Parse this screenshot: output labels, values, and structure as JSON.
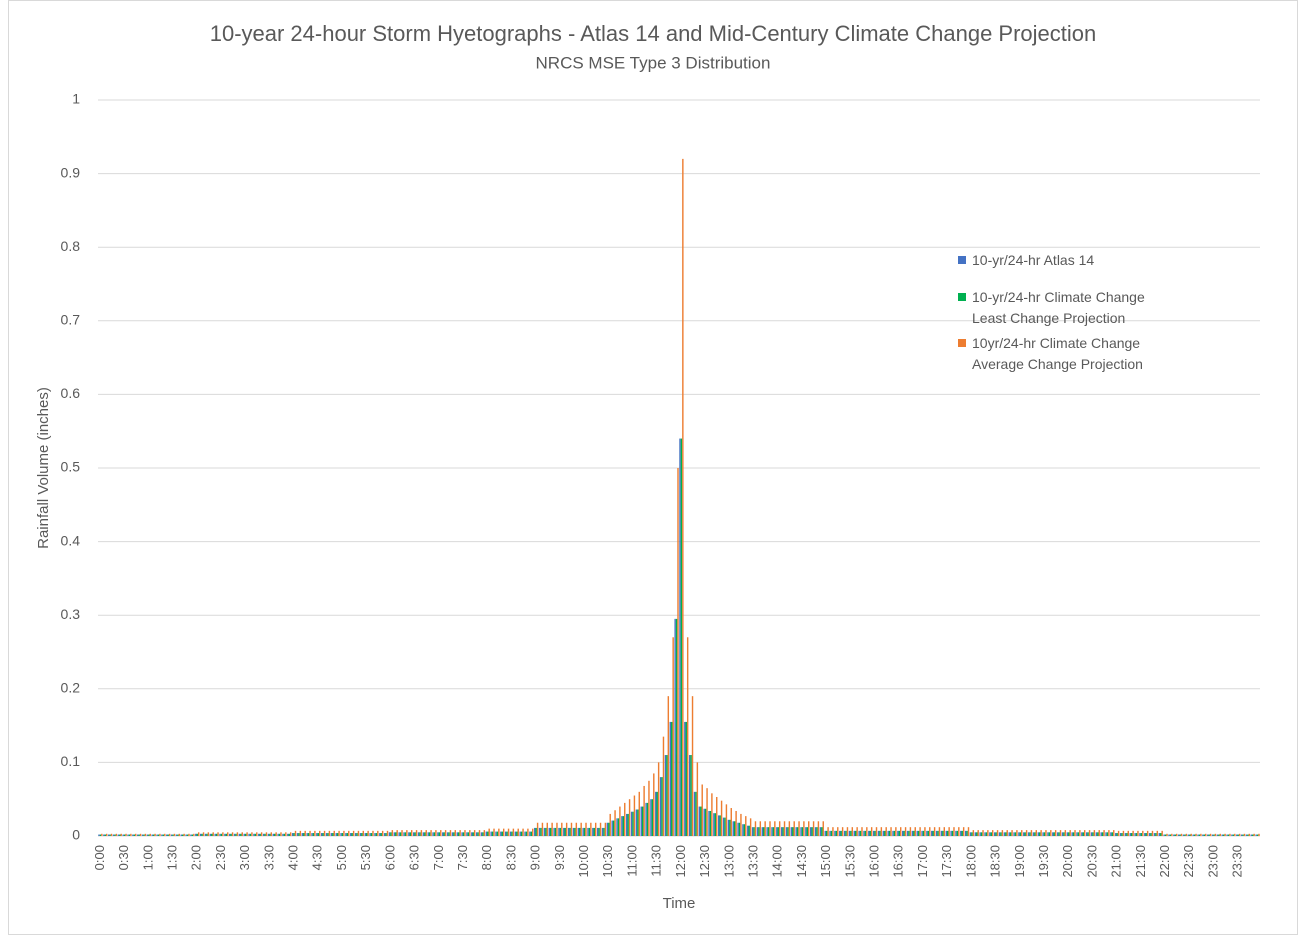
{
  "chart_data": {
    "type": "bar",
    "title": "10-year 24-hour Storm Hyetographs - Atlas 14 and Mid-Century Climate Change Projection",
    "subtitle": "NRCS MSE Type 3 Distribution",
    "x_label": "Time",
    "y_label": "Rainfall Volume (inches)",
    "ylim": [
      0,
      1
    ],
    "yticks": [
      0,
      0.1,
      0.2,
      0.3,
      0.4,
      0.5,
      0.6,
      0.7,
      0.8,
      0.9,
      1
    ],
    "grid": true,
    "legend": "right",
    "categories": [
      "0:00",
      null,
      null,
      null,
      null,
      "0:30",
      null,
      null,
      null,
      null,
      "1:00",
      null,
      null,
      null,
      null,
      "1:30",
      null,
      null,
      null,
      null,
      "2:00",
      null,
      null,
      null,
      null,
      "2:30",
      null,
      null,
      null,
      null,
      "3:00",
      null,
      null,
      null,
      null,
      "3:30",
      null,
      null,
      null,
      null,
      "4:00",
      null,
      null,
      null,
      null,
      "4:30",
      null,
      null,
      null,
      null,
      "5:00",
      null,
      null,
      null,
      null,
      "5:30",
      null,
      null,
      null,
      null,
      "6:00",
      null,
      null,
      null,
      null,
      "6:30",
      null,
      null,
      null,
      null,
      "7:00",
      null,
      null,
      null,
      null,
      "7:30",
      null,
      null,
      null,
      null,
      "8:00",
      null,
      null,
      null,
      null,
      "8:30",
      null,
      null,
      null,
      null,
      "9:00",
      null,
      null,
      null,
      null,
      "9:30",
      null,
      null,
      null,
      null,
      "10:00",
      null,
      null,
      null,
      null,
      "10:30",
      null,
      null,
      null,
      null,
      "11:00",
      null,
      null,
      null,
      null,
      "11:30",
      null,
      null,
      null,
      null,
      "12:00",
      null,
      null,
      null,
      null,
      "12:30",
      null,
      null,
      null,
      null,
      "13:00",
      null,
      null,
      null,
      null,
      "13:30",
      null,
      null,
      null,
      null,
      "14:00",
      null,
      null,
      null,
      null,
      "14:30",
      null,
      null,
      null,
      null,
      "15:00",
      null,
      null,
      null,
      null,
      "15:30",
      null,
      null,
      null,
      null,
      "16:00",
      null,
      null,
      null,
      null,
      "16:30",
      null,
      null,
      null,
      null,
      "17:00",
      null,
      null,
      null,
      null,
      "17:30",
      null,
      null,
      null,
      null,
      "18:00",
      null,
      null,
      null,
      null,
      "18:30",
      null,
      null,
      null,
      null,
      "19:00",
      null,
      null,
      null,
      null,
      "19:30",
      null,
      null,
      null,
      null,
      "20:00",
      null,
      null,
      null,
      null,
      "20:30",
      null,
      null,
      null,
      null,
      "21:00",
      null,
      null,
      null,
      null,
      "21:30",
      null,
      null,
      null,
      null,
      "22:00",
      null,
      null,
      null,
      null,
      "22:30",
      null,
      null,
      null,
      null,
      "23:00",
      null,
      null,
      null,
      null,
      "23:30",
      null,
      null,
      null,
      null
    ],
    "series": [
      {
        "name": "10-yr/24-hr Atlas 14",
        "color": "#4472c4",
        "values": [
          0.002,
          0.002,
          0.002,
          0.002,
          0.002,
          0.002,
          0.002,
          0.002,
          0.002,
          0.002,
          0.002,
          0.002,
          0.002,
          0.002,
          0.002,
          0.002,
          0.002,
          0.002,
          0.002,
          0.002,
          0.003,
          0.003,
          0.003,
          0.003,
          0.003,
          0.003,
          0.003,
          0.003,
          0.003,
          0.003,
          0.003,
          0.003,
          0.003,
          0.003,
          0.003,
          0.003,
          0.003,
          0.003,
          0.003,
          0.003,
          0.004,
          0.004,
          0.004,
          0.004,
          0.004,
          0.004,
          0.004,
          0.004,
          0.004,
          0.004,
          0.004,
          0.004,
          0.004,
          0.004,
          0.004,
          0.004,
          0.004,
          0.004,
          0.004,
          0.004,
          0.005,
          0.005,
          0.005,
          0.005,
          0.005,
          0.005,
          0.005,
          0.005,
          0.005,
          0.005,
          0.005,
          0.005,
          0.005,
          0.005,
          0.005,
          0.005,
          0.005,
          0.005,
          0.005,
          0.005,
          0.006,
          0.006,
          0.006,
          0.006,
          0.006,
          0.006,
          0.006,
          0.006,
          0.006,
          0.006,
          0.011,
          0.011,
          0.011,
          0.011,
          0.011,
          0.011,
          0.011,
          0.011,
          0.011,
          0.011,
          0.011,
          0.011,
          0.011,
          0.011,
          0.011,
          0.018,
          0.021,
          0.024,
          0.027,
          0.03,
          0.033,
          0.036,
          0.04,
          0.045,
          0.05,
          0.06,
          0.08,
          0.11,
          0.155,
          0.295,
          0.54,
          0.155,
          0.11,
          0.06,
          0.04,
          0.037,
          0.034,
          0.031,
          0.028,
          0.025,
          0.022,
          0.02,
          0.018,
          0.016,
          0.014,
          0.012,
          0.012,
          0.012,
          0.012,
          0.012,
          0.012,
          0.012,
          0.012,
          0.012,
          0.012,
          0.012,
          0.012,
          0.012,
          0.012,
          0.012,
          0.007,
          0.007,
          0.007,
          0.007,
          0.007,
          0.007,
          0.007,
          0.007,
          0.007,
          0.007,
          0.007,
          0.007,
          0.007,
          0.007,
          0.007,
          0.007,
          0.007,
          0.007,
          0.007,
          0.007,
          0.007,
          0.007,
          0.007,
          0.007,
          0.007,
          0.007,
          0.007,
          0.007,
          0.007,
          0.007,
          0.005,
          0.005,
          0.005,
          0.005,
          0.005,
          0.005,
          0.005,
          0.005,
          0.005,
          0.005,
          0.005,
          0.005,
          0.005,
          0.005,
          0.005,
          0.005,
          0.005,
          0.005,
          0.005,
          0.005,
          0.005,
          0.005,
          0.005,
          0.005,
          0.005,
          0.005,
          0.005,
          0.005,
          0.005,
          0.005,
          0.004,
          0.004,
          0.004,
          0.004,
          0.004,
          0.004,
          0.004,
          0.004,
          0.004,
          0.004,
          0.002,
          0.002,
          0.002,
          0.002,
          0.002,
          0.002,
          0.002,
          0.002,
          0.002,
          0.002,
          0.002,
          0.002,
          0.002,
          0.002,
          0.002,
          0.002,
          0.002,
          0.002,
          0.002,
          0.002
        ]
      },
      {
        "name": "10-yr/24-hr Climate Change Least Change Projection",
        "color": "#00b050",
        "values": [
          0.002,
          0.002,
          0.002,
          0.002,
          0.002,
          0.002,
          0.002,
          0.002,
          0.002,
          0.002,
          0.002,
          0.002,
          0.002,
          0.002,
          0.002,
          0.002,
          0.002,
          0.002,
          0.002,
          0.002,
          0.003,
          0.003,
          0.003,
          0.003,
          0.003,
          0.003,
          0.003,
          0.003,
          0.003,
          0.003,
          0.003,
          0.003,
          0.003,
          0.003,
          0.003,
          0.003,
          0.003,
          0.003,
          0.003,
          0.003,
          0.004,
          0.004,
          0.004,
          0.004,
          0.004,
          0.004,
          0.004,
          0.004,
          0.004,
          0.004,
          0.004,
          0.004,
          0.004,
          0.004,
          0.004,
          0.004,
          0.004,
          0.004,
          0.004,
          0.004,
          0.005,
          0.005,
          0.005,
          0.005,
          0.005,
          0.005,
          0.005,
          0.005,
          0.005,
          0.005,
          0.005,
          0.005,
          0.005,
          0.005,
          0.005,
          0.005,
          0.005,
          0.005,
          0.005,
          0.005,
          0.006,
          0.006,
          0.006,
          0.006,
          0.006,
          0.006,
          0.006,
          0.006,
          0.006,
          0.006,
          0.011,
          0.011,
          0.011,
          0.011,
          0.011,
          0.011,
          0.011,
          0.011,
          0.011,
          0.011,
          0.011,
          0.011,
          0.011,
          0.011,
          0.011,
          0.018,
          0.021,
          0.024,
          0.027,
          0.03,
          0.033,
          0.036,
          0.04,
          0.045,
          0.05,
          0.06,
          0.08,
          0.11,
          0.155,
          0.295,
          0.54,
          0.155,
          0.11,
          0.06,
          0.04,
          0.037,
          0.034,
          0.031,
          0.028,
          0.025,
          0.022,
          0.02,
          0.018,
          0.016,
          0.014,
          0.012,
          0.012,
          0.012,
          0.012,
          0.012,
          0.012,
          0.012,
          0.012,
          0.012,
          0.012,
          0.012,
          0.012,
          0.012,
          0.012,
          0.012,
          0.007,
          0.007,
          0.007,
          0.007,
          0.007,
          0.007,
          0.007,
          0.007,
          0.007,
          0.007,
          0.007,
          0.007,
          0.007,
          0.007,
          0.007,
          0.007,
          0.007,
          0.007,
          0.007,
          0.007,
          0.007,
          0.007,
          0.007,
          0.007,
          0.007,
          0.007,
          0.007,
          0.007,
          0.007,
          0.007,
          0.005,
          0.005,
          0.005,
          0.005,
          0.005,
          0.005,
          0.005,
          0.005,
          0.005,
          0.005,
          0.005,
          0.005,
          0.005,
          0.005,
          0.005,
          0.005,
          0.005,
          0.005,
          0.005,
          0.005,
          0.005,
          0.005,
          0.005,
          0.005,
          0.005,
          0.005,
          0.005,
          0.005,
          0.005,
          0.005,
          0.004,
          0.004,
          0.004,
          0.004,
          0.004,
          0.004,
          0.004,
          0.004,
          0.004,
          0.004,
          0.002,
          0.002,
          0.002,
          0.002,
          0.002,
          0.002,
          0.002,
          0.002,
          0.002,
          0.002,
          0.002,
          0.002,
          0.002,
          0.002,
          0.002,
          0.002,
          0.002,
          0.002,
          0.002,
          0.002
        ]
      },
      {
        "name": "10yr/24-hr Climate Change Average Change Projection",
        "color": "#ed7d31",
        "values": [
          0.003,
          0.003,
          0.003,
          0.003,
          0.003,
          0.003,
          0.003,
          0.003,
          0.003,
          0.003,
          0.003,
          0.003,
          0.003,
          0.003,
          0.003,
          0.003,
          0.003,
          0.003,
          0.003,
          0.003,
          0.005,
          0.005,
          0.005,
          0.005,
          0.005,
          0.005,
          0.005,
          0.005,
          0.005,
          0.005,
          0.005,
          0.005,
          0.005,
          0.005,
          0.005,
          0.005,
          0.005,
          0.005,
          0.005,
          0.005,
          0.007,
          0.007,
          0.007,
          0.007,
          0.007,
          0.007,
          0.007,
          0.007,
          0.007,
          0.007,
          0.007,
          0.007,
          0.007,
          0.007,
          0.007,
          0.007,
          0.007,
          0.007,
          0.007,
          0.007,
          0.008,
          0.008,
          0.008,
          0.008,
          0.008,
          0.008,
          0.008,
          0.008,
          0.008,
          0.008,
          0.008,
          0.008,
          0.008,
          0.008,
          0.008,
          0.008,
          0.008,
          0.008,
          0.008,
          0.008,
          0.01,
          0.01,
          0.01,
          0.01,
          0.01,
          0.01,
          0.01,
          0.01,
          0.01,
          0.01,
          0.018,
          0.018,
          0.018,
          0.018,
          0.018,
          0.018,
          0.018,
          0.018,
          0.018,
          0.018,
          0.018,
          0.018,
          0.018,
          0.018,
          0.018,
          0.03,
          0.035,
          0.04,
          0.045,
          0.05,
          0.055,
          0.06,
          0.068,
          0.075,
          0.085,
          0.1,
          0.135,
          0.19,
          0.27,
          0.5,
          0.92,
          0.27,
          0.19,
          0.1,
          0.07,
          0.065,
          0.058,
          0.053,
          0.048,
          0.043,
          0.038,
          0.034,
          0.03,
          0.027,
          0.024,
          0.02,
          0.02,
          0.02,
          0.02,
          0.02,
          0.02,
          0.02,
          0.02,
          0.02,
          0.02,
          0.02,
          0.02,
          0.02,
          0.02,
          0.02,
          0.012,
          0.012,
          0.012,
          0.012,
          0.012,
          0.012,
          0.012,
          0.012,
          0.012,
          0.012,
          0.012,
          0.012,
          0.012,
          0.012,
          0.012,
          0.012,
          0.012,
          0.012,
          0.012,
          0.012,
          0.012,
          0.012,
          0.012,
          0.012,
          0.012,
          0.012,
          0.012,
          0.012,
          0.012,
          0.012,
          0.008,
          0.008,
          0.008,
          0.008,
          0.008,
          0.008,
          0.008,
          0.008,
          0.008,
          0.008,
          0.008,
          0.008,
          0.008,
          0.008,
          0.008,
          0.008,
          0.008,
          0.008,
          0.008,
          0.008,
          0.008,
          0.008,
          0.008,
          0.008,
          0.008,
          0.008,
          0.008,
          0.008,
          0.008,
          0.008,
          0.007,
          0.007,
          0.007,
          0.007,
          0.007,
          0.007,
          0.007,
          0.007,
          0.007,
          0.007,
          0.003,
          0.003,
          0.003,
          0.003,
          0.003,
          0.003,
          0.003,
          0.003,
          0.003,
          0.003,
          0.003,
          0.003,
          0.003,
          0.003,
          0.003,
          0.003,
          0.003,
          0.003,
          0.003,
          0.003
        ]
      }
    ]
  }
}
